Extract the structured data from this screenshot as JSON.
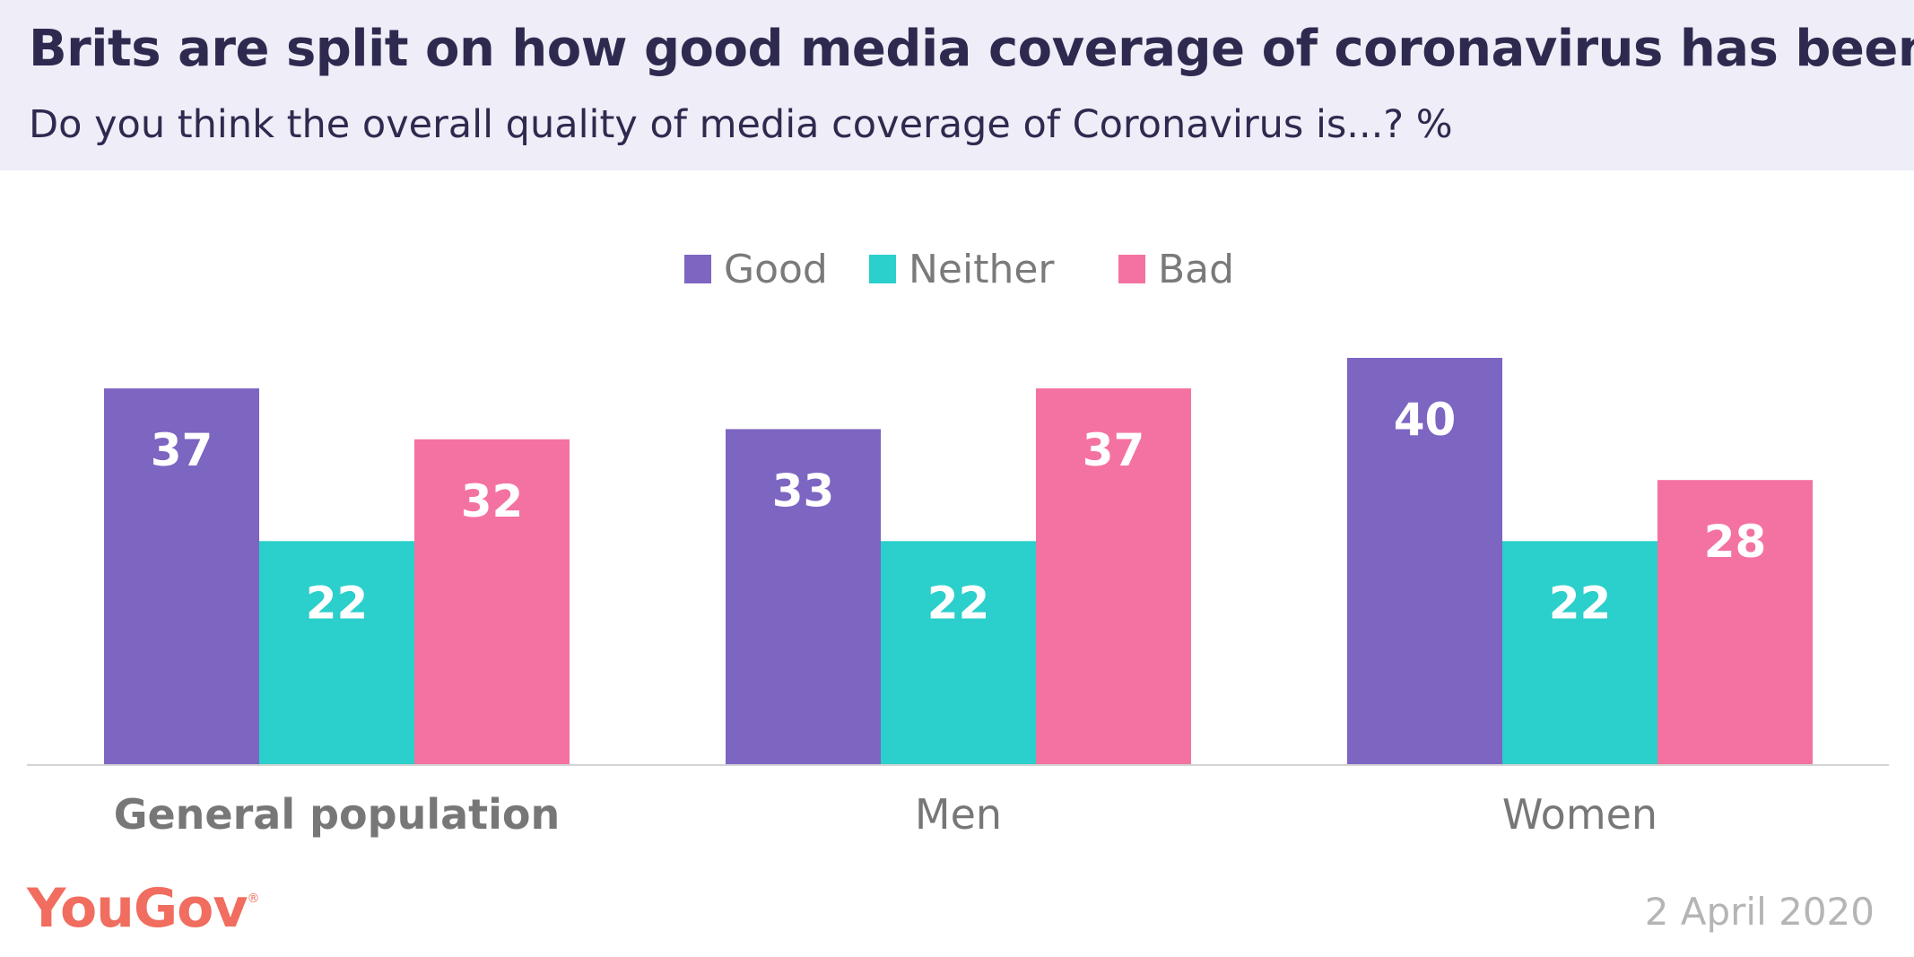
{
  "header": {
    "title": "Brits are split on how good media coverage of coronavirus has been",
    "subtitle": "Do you think the overall quality of media coverage of Coronavirus is...? %"
  },
  "chart_data": {
    "type": "bar",
    "title": "Brits are split on how good media coverage of coronavirus has been",
    "subtitle": "Do you think the overall quality of media coverage of Coronavirus is...? %",
    "categories": [
      "General population",
      "Men",
      "Women"
    ],
    "series": [
      {
        "name": "Good",
        "values": [
          37,
          33,
          40
        ],
        "color": "#7d65c2"
      },
      {
        "name": "Neither",
        "values": [
          22,
          22,
          22
        ],
        "color": "#2bcfcb"
      },
      {
        "name": "Bad",
        "values": [
          32,
          37,
          28
        ],
        "color": "#f472a1"
      }
    ],
    "ylim": [
      0,
      45
    ],
    "grid": false,
    "legend": "top-center",
    "data_labels": true
  },
  "footer": {
    "logo": "YouGov",
    "logo_mark": "®",
    "date": "2 April 2020"
  }
}
